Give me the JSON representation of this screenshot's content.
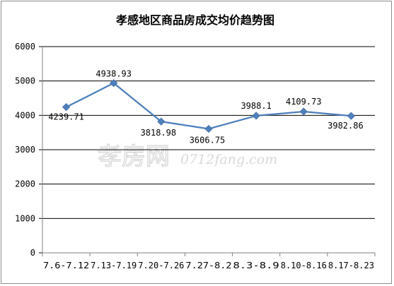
{
  "watermark": {
    "brand": "孝房网",
    "site": "0712fang.com"
  },
  "chart_data": {
    "type": "line",
    "title": "孝感地区商品房成交均价趋势图",
    "categories": [
      "7.6-7.12",
      "7.13-7.19",
      "7.20-7.26",
      "7.27-8.2",
      "8.3-8.9",
      "8.10-8.16",
      "8.17-8.23"
    ],
    "values": [
      4239.71,
      4938.93,
      3818.98,
      3606.75,
      3988.1,
      4109.73,
      3982.86
    ],
    "labels": [
      "4239.71",
      "4938.93",
      "3818.98",
      "3606.75",
      "3988.1",
      "4109.73",
      "3982.86"
    ],
    "ylim": [
      0,
      6000
    ],
    "yticks": [
      0,
      1000,
      2000,
      3000,
      4000,
      5000,
      6000
    ],
    "grid": true,
    "legend": "none",
    "line_color": "#4a7ebb",
    "marker_color": "#4f81bd",
    "marker": "diamond"
  }
}
